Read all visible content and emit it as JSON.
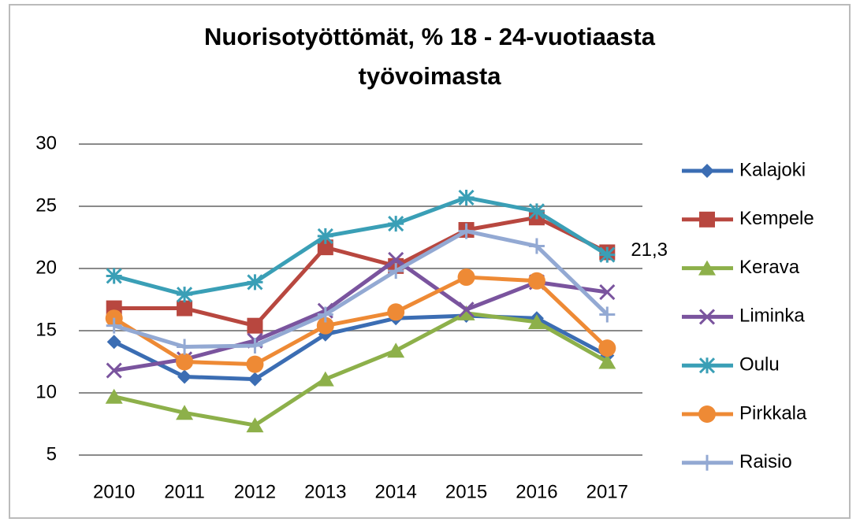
{
  "chart_data": {
    "type": "line",
    "title": "Nuorisotyöttömät, % 18 - 24-vuotiaasta työvoimasta",
    "categories": [
      "2010",
      "2011",
      "2012",
      "2013",
      "2014",
      "2015",
      "2016",
      "2017"
    ],
    "series": [
      {
        "name": "Kalajoki",
        "color": "#3b6db3",
        "marker": "diamond",
        "values": [
          14.1,
          11.3,
          11.1,
          14.7,
          16.0,
          16.2,
          16.0,
          13.0
        ]
      },
      {
        "name": "Kempele",
        "color": "#b8473f",
        "marker": "square",
        "values": [
          16.8,
          16.8,
          15.4,
          21.7,
          20.2,
          23.1,
          24.1,
          21.3
        ],
        "value_labels": [
          null,
          null,
          null,
          null,
          null,
          null,
          null,
          "21,3"
        ]
      },
      {
        "name": "Kerava",
        "color": "#8db04a",
        "marker": "triangle",
        "values": [
          9.7,
          8.4,
          7.4,
          11.1,
          13.4,
          16.4,
          15.7,
          12.5
        ]
      },
      {
        "name": "Liminka",
        "color": "#7a549e",
        "marker": "x",
        "values": [
          11.8,
          12.7,
          14.2,
          16.6,
          20.7,
          16.7,
          18.9,
          18.1
        ]
      },
      {
        "name": "Oulu",
        "color": "#3a9fb6",
        "marker": "star",
        "values": [
          19.4,
          17.9,
          18.9,
          22.6,
          23.6,
          25.7,
          24.6,
          21.1
        ]
      },
      {
        "name": "Pirkkala",
        "color": "#ee8a35",
        "marker": "circle",
        "values": [
          16.0,
          12.5,
          12.3,
          15.4,
          16.5,
          19.3,
          19.0,
          13.6
        ]
      },
      {
        "name": "Raisio",
        "color": "#93a9d3",
        "marker": "plus",
        "values": [
          15.4,
          13.7,
          13.8,
          16.3,
          19.8,
          23.0,
          21.8,
          16.3
        ]
      }
    ],
    "ylim": [
      5,
      30
    ],
    "yticks": [
      5,
      10,
      15,
      20,
      25,
      30
    ],
    "grid": true,
    "legend": "right"
  }
}
